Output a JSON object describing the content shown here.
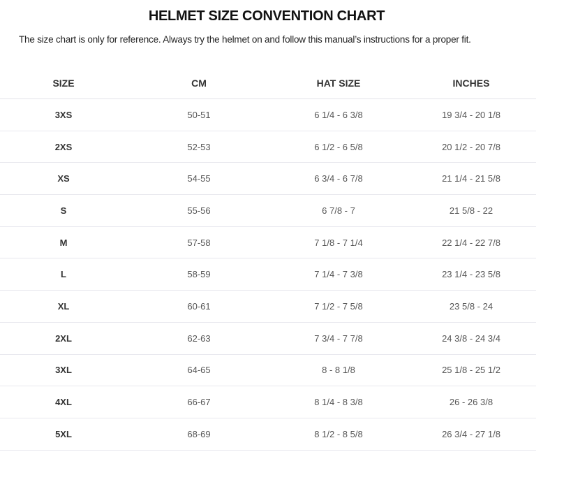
{
  "title": "HELMET SIZE CONVENTION CHART",
  "subtitle": "The size chart is only for reference. Always try the helmet on and follow this manual’s instructions for a proper fit.",
  "table": {
    "headers": [
      "SIZE",
      "CM",
      "HAT SIZE",
      "INCHES"
    ],
    "rows": [
      [
        "3XS",
        "50-51",
        "6 1/4 - 6 3/8",
        "19 3/4 - 20 1/8"
      ],
      [
        "2XS",
        "52-53",
        "6 1/2 - 6 5/8",
        "20 1/2 - 20 7/8"
      ],
      [
        "XS",
        "54-55",
        "6 3/4 - 6 7/8",
        "21 1/4 - 21 5/8"
      ],
      [
        "S",
        "55-56",
        "6 7/8 - 7",
        "21 5/8 - 22"
      ],
      [
        "M",
        "57-58",
        "7 1/8 - 7 1/4",
        "22 1/4 - 22 7/8"
      ],
      [
        "L",
        "58-59",
        "7 1/4 - 7 3/8",
        "23 1/4 - 23 5/8"
      ],
      [
        "XL",
        "60-61",
        "7 1/2 - 7 5/8",
        "23 5/8 - 24"
      ],
      [
        "2XL",
        "62-63",
        "7 3/4 - 7 7/8",
        "24 3/8 - 24 3/4"
      ],
      [
        "3XL",
        "64-65",
        "8 - 8 1/8",
        "25 1/8 - 25 1/2"
      ],
      [
        "4XL",
        "66-67",
        "8 1/4 - 8 3/8",
        "26 - 26 3/8"
      ],
      [
        "5XL",
        "68-69",
        "8 1/2 - 8 5/8",
        "26 3/4 - 27 1/8"
      ]
    ]
  }
}
